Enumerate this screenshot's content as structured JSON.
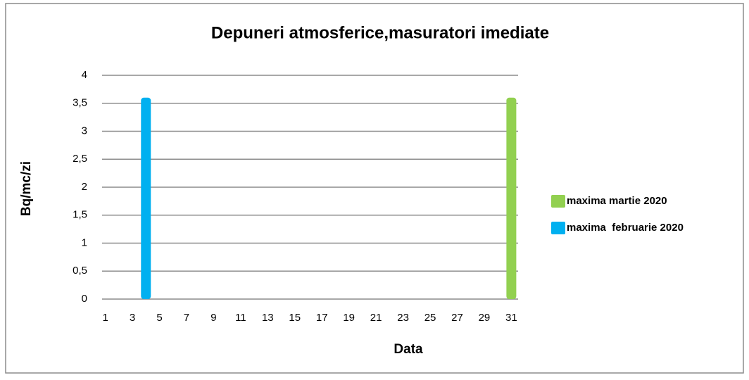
{
  "chart_data": {
    "type": "bar",
    "title": "Depuneri atmosferice,masuratori  imediate",
    "x_label": "Data",
    "y_label": "Bq/mc/zi",
    "categories": [
      "1",
      null,
      "3",
      null,
      "5",
      null,
      "7",
      null,
      "9",
      null,
      "11",
      null,
      "13",
      null,
      "15",
      null,
      "17",
      null,
      "19",
      null,
      "21",
      null,
      "23",
      null,
      "25",
      null,
      "27",
      null,
      "29",
      null,
      "31"
    ],
    "series": [
      {
        "name": "maxima martie 2020",
        "color": "#92d050",
        "values": [
          null,
          null,
          null,
          null,
          null,
          null,
          null,
          null,
          null,
          null,
          null,
          null,
          null,
          null,
          null,
          null,
          null,
          null,
          null,
          null,
          null,
          null,
          null,
          null,
          null,
          null,
          null,
          null,
          null,
          null,
          3.6
        ]
      },
      {
        "name": "maxima  februarie 2020",
        "color": "#00b0f0",
        "values": [
          null,
          null,
          null,
          3.6,
          null,
          null,
          null,
          null,
          null,
          null,
          null,
          null,
          null,
          null,
          null,
          null,
          null,
          null,
          null,
          null,
          null,
          null,
          null,
          null,
          null,
          null,
          null,
          null,
          null,
          null,
          null
        ]
      }
    ],
    "ylim": [
      0,
      4
    ],
    "yticks": [
      0,
      {
        "value": 0.5,
        "label": "0,5"
      },
      1,
      {
        "value": 1.5,
        "label": "1,5"
      },
      2,
      {
        "value": 2.5,
        "label": "2,5"
      },
      3,
      {
        "value": 3.5,
        "label": "3,5"
      },
      4
    ],
    "grid": true,
    "legend": "right"
  }
}
